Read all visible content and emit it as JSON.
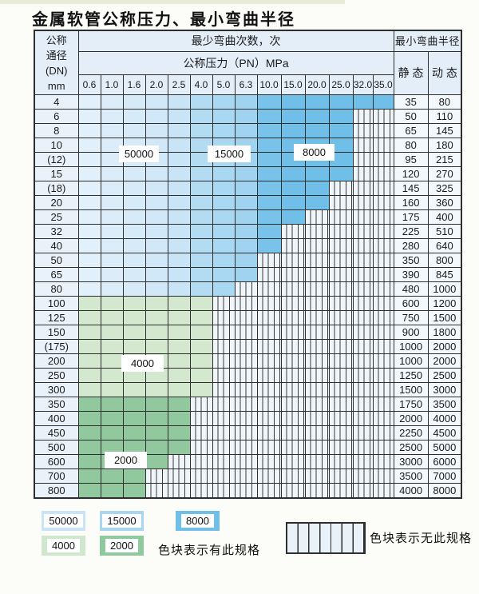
{
  "title": "金属软管公称压力、最小弯曲半径",
  "table": {
    "header": {
      "dn_lines": [
        "公称",
        "通径",
        "(DN)",
        "mm"
      ],
      "bend_count_label": "最少弯曲次数，次",
      "pressure_label": "公称压力（PN）MPa",
      "radius_label": "最小弯曲半径",
      "static_label": "静 态",
      "dynamic_label": "动 态",
      "pn_columns": [
        "0.6",
        "1.0",
        "1.6",
        "2.0",
        "2.5",
        "4.0",
        "5.0",
        "6.3",
        "10.0",
        "15.0",
        "20.0",
        "25.0",
        "32.0",
        "35.0"
      ]
    },
    "rows": [
      {
        "dn": "4",
        "zone": "blue",
        "available_pn_count": 14,
        "static": "35",
        "dynamic": "80"
      },
      {
        "dn": "6",
        "zone": "blue",
        "available_pn_count": 12,
        "static": "50",
        "dynamic": "110"
      },
      {
        "dn": "8",
        "zone": "blue",
        "available_pn_count": 12,
        "static": "65",
        "dynamic": "145"
      },
      {
        "dn": "10",
        "zone": "blue",
        "available_pn_count": 12,
        "static": "80",
        "dynamic": "180"
      },
      {
        "dn": "(12)",
        "zone": "blue",
        "available_pn_count": 12,
        "static": "95",
        "dynamic": "215"
      },
      {
        "dn": "15",
        "zone": "blue",
        "available_pn_count": 12,
        "static": "120",
        "dynamic": "270"
      },
      {
        "dn": "(18)",
        "zone": "blue",
        "available_pn_count": 11,
        "static": "145",
        "dynamic": "325"
      },
      {
        "dn": "20",
        "zone": "blue",
        "available_pn_count": 11,
        "static": "160",
        "dynamic": "360"
      },
      {
        "dn": "25",
        "zone": "blue",
        "available_pn_count": 10,
        "static": "175",
        "dynamic": "400"
      },
      {
        "dn": "32",
        "zone": "blue",
        "available_pn_count": 9,
        "static": "225",
        "dynamic": "510"
      },
      {
        "dn": "40",
        "zone": "blue",
        "available_pn_count": 9,
        "static": "280",
        "dynamic": "640"
      },
      {
        "dn": "50",
        "zone": "blue",
        "available_pn_count": 8,
        "static": "350",
        "dynamic": "800"
      },
      {
        "dn": "65",
        "zone": "blue",
        "available_pn_count": 8,
        "static": "390",
        "dynamic": "845"
      },
      {
        "dn": "80",
        "zone": "blue",
        "available_pn_count": 7,
        "static": "480",
        "dynamic": "1000"
      },
      {
        "dn": "100",
        "zone": "green_4000",
        "available_pn_count": 6,
        "static": "600",
        "dynamic": "1200"
      },
      {
        "dn": "125",
        "zone": "green_4000",
        "available_pn_count": 6,
        "static": "750",
        "dynamic": "1500"
      },
      {
        "dn": "150",
        "zone": "green_4000",
        "available_pn_count": 6,
        "static": "900",
        "dynamic": "1800"
      },
      {
        "dn": "(175)",
        "zone": "green_4000",
        "available_pn_count": 6,
        "static": "1000",
        "dynamic": "2000"
      },
      {
        "dn": "200",
        "zone": "green_4000",
        "available_pn_count": 6,
        "static": "1000",
        "dynamic": "2000"
      },
      {
        "dn": "250",
        "zone": "green_4000",
        "available_pn_count": 6,
        "static": "1250",
        "dynamic": "2500"
      },
      {
        "dn": "300",
        "zone": "green_4000",
        "available_pn_count": 6,
        "static": "1500",
        "dynamic": "3000"
      },
      {
        "dn": "350",
        "zone": "green_2000",
        "available_pn_count": 5,
        "static": "1750",
        "dynamic": "3500"
      },
      {
        "dn": "400",
        "zone": "green_2000",
        "available_pn_count": 5,
        "static": "2000",
        "dynamic": "4000"
      },
      {
        "dn": "450",
        "zone": "green_2000",
        "available_pn_count": 5,
        "static": "2250",
        "dynamic": "4500"
      },
      {
        "dn": "500",
        "zone": "green_2000",
        "available_pn_count": 5,
        "static": "2500",
        "dynamic": "5000"
      },
      {
        "dn": "600",
        "zone": "green_2000",
        "available_pn_count": 4,
        "static": "3000",
        "dynamic": "6000"
      },
      {
        "dn": "700",
        "zone": "green_2000",
        "available_pn_count": 3,
        "static": "3500",
        "dynamic": "7000"
      },
      {
        "dn": "800",
        "zone": "green_2000",
        "available_pn_count": 3,
        "static": "4000",
        "dynamic": "8000"
      }
    ]
  },
  "overlay_labels": {
    "l50000": "50000",
    "l15000": "15000",
    "l8000": "8000",
    "l4000": "4000",
    "l2000": "2000"
  },
  "legend": {
    "items": [
      {
        "label": "50000",
        "color": "#c8e4f6"
      },
      {
        "label": "15000",
        "color": "#a8d6f1"
      },
      {
        "label": "8000",
        "color": "#6fbfe9"
      },
      {
        "label": "4000",
        "color": "#cfe7cc"
      },
      {
        "label": "2000",
        "color": "#8fc99e"
      }
    ],
    "has_spec_text": "色块表示有此规格",
    "no_spec_text": "色块表示无此规格"
  },
  "colors": {
    "blue_ramp": [
      "#e1f0fa",
      "#dcedf9",
      "#d6eaf8",
      "#d0e8f7",
      "#c9e4f6",
      "#b3dcf3",
      "#a9d8f2",
      "#9fd3f0",
      "#79c3ea",
      "#6fbfe9",
      "#6fbfe9",
      "#6fbfe9",
      "#6fbfe9",
      "#6fbfe9"
    ],
    "green_4000": "#d4e8d0",
    "green_2000": "#92c89e",
    "no_spec_fill": "#f0f5fa"
  }
}
